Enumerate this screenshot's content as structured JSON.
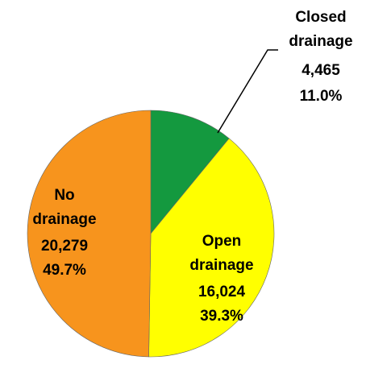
{
  "chart_data": {
    "type": "pie",
    "categories": [
      "Closed drainage",
      "Open drainage",
      "No drainage"
    ],
    "values": [
      4465,
      16024,
      20279
    ],
    "value_labels": [
      "4,465",
      "16,024",
      "20,279"
    ],
    "percent_labels": [
      "11.0%",
      "39.3%",
      "49.7%"
    ],
    "colors": [
      "#14993f",
      "#ffff00",
      "#f7941d"
    ]
  }
}
